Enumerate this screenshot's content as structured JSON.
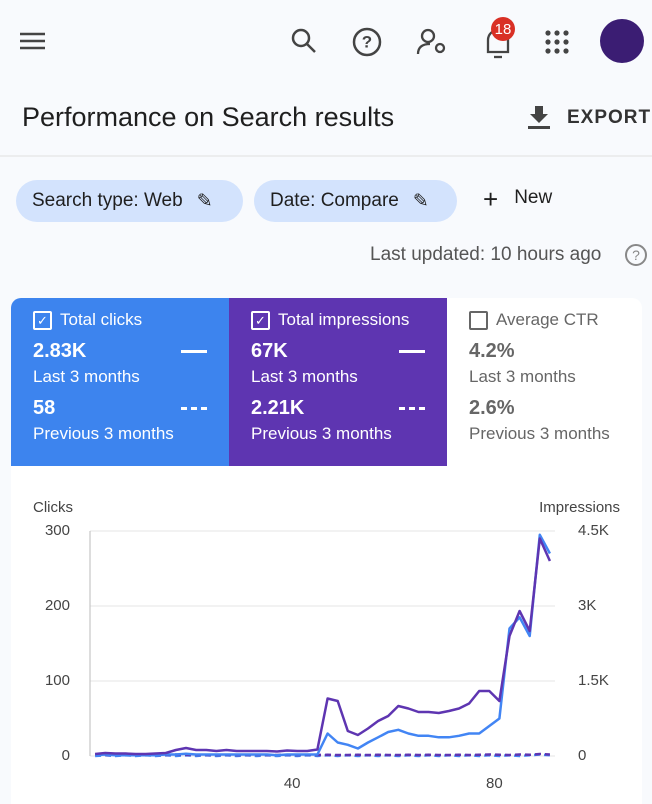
{
  "topbar": {
    "notifications": "18"
  },
  "header": {
    "title": "Performance on Search results",
    "export": "EXPORT"
  },
  "filters": [
    "Search type: Web",
    "Date: Compare"
  ],
  "new_button": "New",
  "last_updated": "Last updated: 10 hours ago",
  "metrics": [
    {
      "label": "Total clicks",
      "checked": true,
      "color": "#3d84ee",
      "current": "2.83K",
      "current_period": "Last 3 months",
      "previous": "58",
      "previous_period": "Previous 3 months"
    },
    {
      "label": "Total impressions",
      "checked": true,
      "color": "#5e35b1",
      "current": "67K",
      "current_period": "Last 3 months",
      "previous": "2.21K",
      "previous_period": "Previous 3 months"
    },
    {
      "label": "Average CTR",
      "checked": false,
      "color": "#ffffff",
      "current": "4.2%",
      "current_period": "Last 3 months",
      "previous": "2.6%",
      "previous_period": "Previous 3 months"
    }
  ],
  "chart_data": {
    "type": "line",
    "y_label": "Clicks",
    "y2_label": "Impressions",
    "x": [
      1,
      3,
      5,
      7,
      9,
      11,
      13,
      15,
      17,
      19,
      21,
      23,
      25,
      27,
      29,
      31,
      33,
      35,
      37,
      39,
      41,
      43,
      45,
      47,
      49,
      51,
      53,
      55,
      57,
      59,
      61,
      63,
      65,
      67,
      69,
      71,
      73,
      75,
      77,
      79,
      81,
      83,
      85,
      87,
      89,
      91
    ],
    "xlim": [
      0,
      92
    ],
    "xticks": [
      40,
      80
    ],
    "ylim": [
      0,
      300
    ],
    "yticks": [
      0,
      100,
      200,
      300
    ],
    "y2lim": [
      0,
      4500
    ],
    "y2ticks": [
      0,
      {
        "value": 1500,
        "label": "1.5K"
      },
      {
        "value": 3000,
        "label": "3K"
      },
      {
        "value": 4500,
        "label": "4.5K"
      }
    ],
    "grid": true,
    "series": [
      {
        "color": "#5e35b1",
        "axis": "y2",
        "dashed": false,
        "values": [
          40,
          60,
          50,
          50,
          40,
          40,
          50,
          60,
          120,
          160,
          120,
          120,
          100,
          120,
          100,
          100,
          100,
          100,
          90,
          110,
          100,
          100,
          130,
          1150,
          1100,
          500,
          420,
          550,
          700,
          800,
          1000,
          950,
          880,
          880,
          860,
          900,
          950,
          1050,
          1300,
          1300,
          1100,
          2400,
          2900,
          2500,
          4350,
          3900
        ]
      },
      {
        "color": "#4285f4",
        "axis": "y",
        "dashed": false,
        "values": [
          1,
          2,
          1,
          1,
          1,
          1,
          1,
          2,
          2,
          3,
          2,
          2,
          2,
          2,
          2,
          2,
          2,
          2,
          1,
          2,
          2,
          2,
          2,
          30,
          18,
          15,
          10,
          18,
          25,
          32,
          35,
          30,
          27,
          27,
          25,
          25,
          27,
          30,
          30,
          40,
          50,
          170,
          185,
          160,
          295,
          270
        ]
      },
      {
        "color": "#5e35b1",
        "axis": "y2",
        "dashed": true,
        "values": [
          30,
          20,
          25,
          20,
          20,
          25,
          20,
          20,
          30,
          20,
          25,
          20,
          20,
          25,
          20,
          20,
          25,
          20,
          20,
          25,
          20,
          25,
          20,
          25,
          20,
          20,
          25,
          20,
          25,
          20,
          20,
          25,
          20,
          25,
          20,
          20,
          25,
          20,
          25,
          30,
          25,
          20,
          30,
          25,
          40,
          30
        ]
      },
      {
        "color": "#4285f4",
        "axis": "y",
        "dashed": true,
        "values": [
          0,
          1,
          0,
          1,
          0,
          1,
          0,
          1,
          0,
          1,
          0,
          1,
          0,
          1,
          0,
          1,
          0,
          1,
          0,
          1,
          0,
          1,
          0,
          1,
          0,
          1,
          0,
          1,
          0,
          1,
          0,
          1,
          0,
          1,
          0,
          1,
          0,
          1,
          0,
          1,
          0,
          1,
          0,
          1,
          2,
          1
        ]
      }
    ]
  }
}
